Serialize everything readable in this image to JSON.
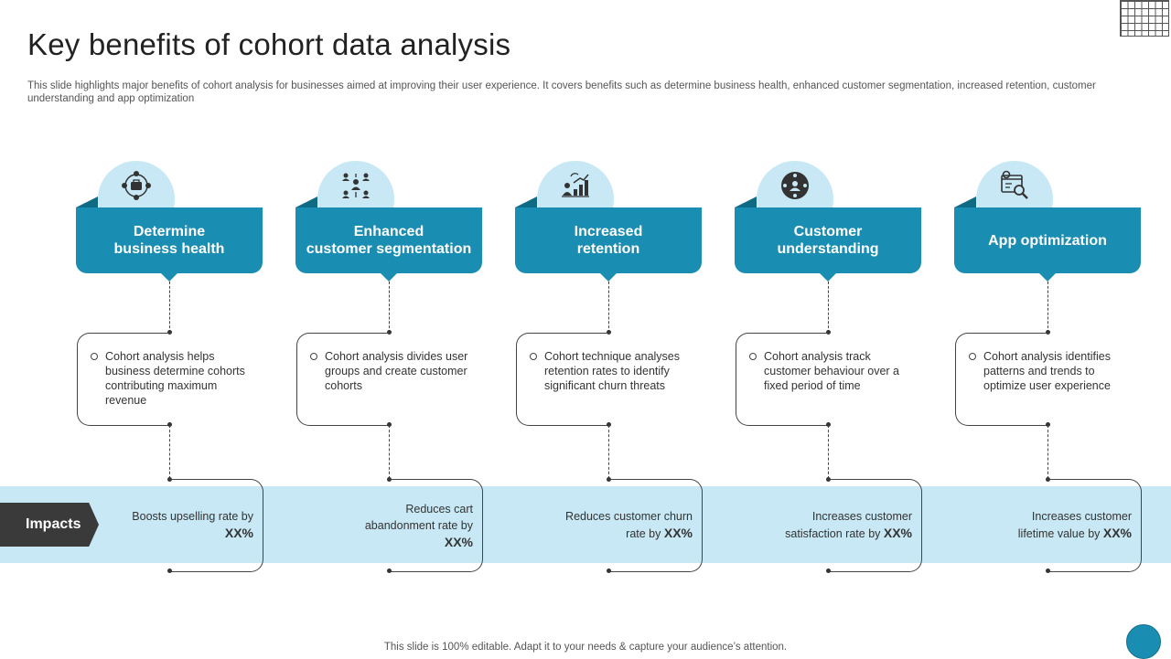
{
  "title": "Key benefits of cohort data analysis",
  "subtitle": "This slide highlights major benefits of cohort analysis for businesses aimed at improving their user experience. It covers benefits such as determine business health, enhanced customer segmentation, increased retention, customer understanding and app optimization",
  "impacts_label": "Impacts",
  "footer": "This slide is 100% editable. Adapt it to your needs & capture your audience’s attention.",
  "colors": {
    "accent": "#1a8db2",
    "accent_dark": "#0e6a85",
    "light": "#c7e8f4",
    "tag": "#3a3a3a"
  },
  "benefits": [
    {
      "icon": "network-briefcase-icon",
      "title_line1": "Determine",
      "title_line2": "business health",
      "description": "Cohort analysis helps business determine cohorts contributing maximum revenue",
      "impact_text": "Boosts upselling rate by",
      "impact_value": "XX%"
    },
    {
      "icon": "team-network-icon",
      "title_line1": "Enhanced",
      "title_line2": "customer segmentation",
      "description": "Cohort analysis divides user groups and create customer cohorts",
      "impact_text": "Reduces cart abandonment rate by",
      "impact_value": "XX%"
    },
    {
      "icon": "growth-chart-icon",
      "title_line1": "Increased",
      "title_line2": "retention",
      "description": "Cohort technique analyses retention rates to identify significant churn threats",
      "impact_text": "Reduces customer churn rate by",
      "impact_value": "XX%"
    },
    {
      "icon": "customer-circle-icon",
      "title_line1": "Customer",
      "title_line2": "understanding",
      "description": "Cohort analysis track customer behaviour over a fixed period of time",
      "impact_text": "Increases customer satisfaction rate by",
      "impact_value": "XX%"
    },
    {
      "icon": "app-settings-icon",
      "title_line1": "App optimization",
      "title_line2": "",
      "description": "Cohort analysis identifies patterns and trends to optimize user experience",
      "impact_text": "Increases customer lifetime value by",
      "impact_value": "XX%"
    }
  ]
}
